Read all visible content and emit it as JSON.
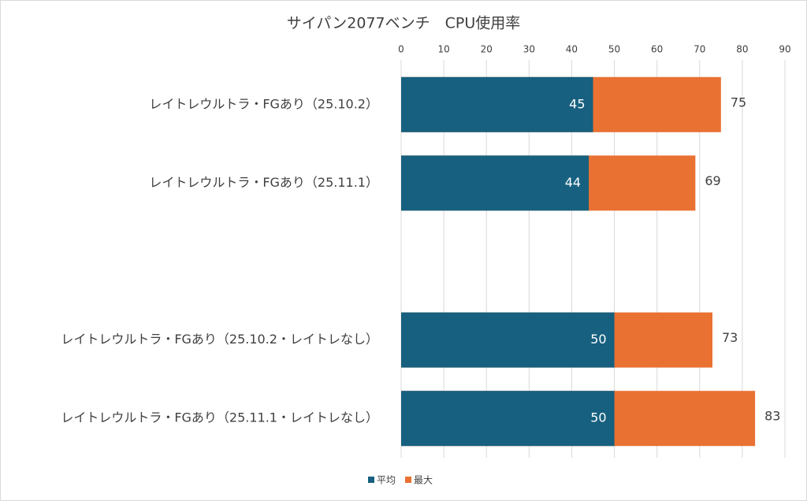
{
  "chart_data": {
    "type": "bar",
    "orientation": "horizontal",
    "title": "サイパン2077ベンチ　CPU使用率",
    "categories": [
      "レイトレウルトラ・FGあり（25.10.2）",
      "レイトレウルトラ・FGあり（25.11.1）",
      null,
      "レイトレウルトラ・FGあり（25.10.2・レイトレなし）",
      "レイトレウルトラ・FGあり（25.11.1・レイトレなし）"
    ],
    "series": [
      {
        "name": "平均",
        "color": "#17607f",
        "values": [
          45,
          44,
          null,
          50,
          50
        ]
      },
      {
        "name": "最大",
        "color": "#e97132",
        "values": [
          75,
          69,
          null,
          73,
          83
        ]
      }
    ],
    "xlim": [
      0,
      90
    ],
    "xticks": [
      0,
      10,
      20,
      30,
      40,
      50,
      60,
      70,
      80,
      90
    ],
    "grid": true,
    "legend": "bottom"
  }
}
